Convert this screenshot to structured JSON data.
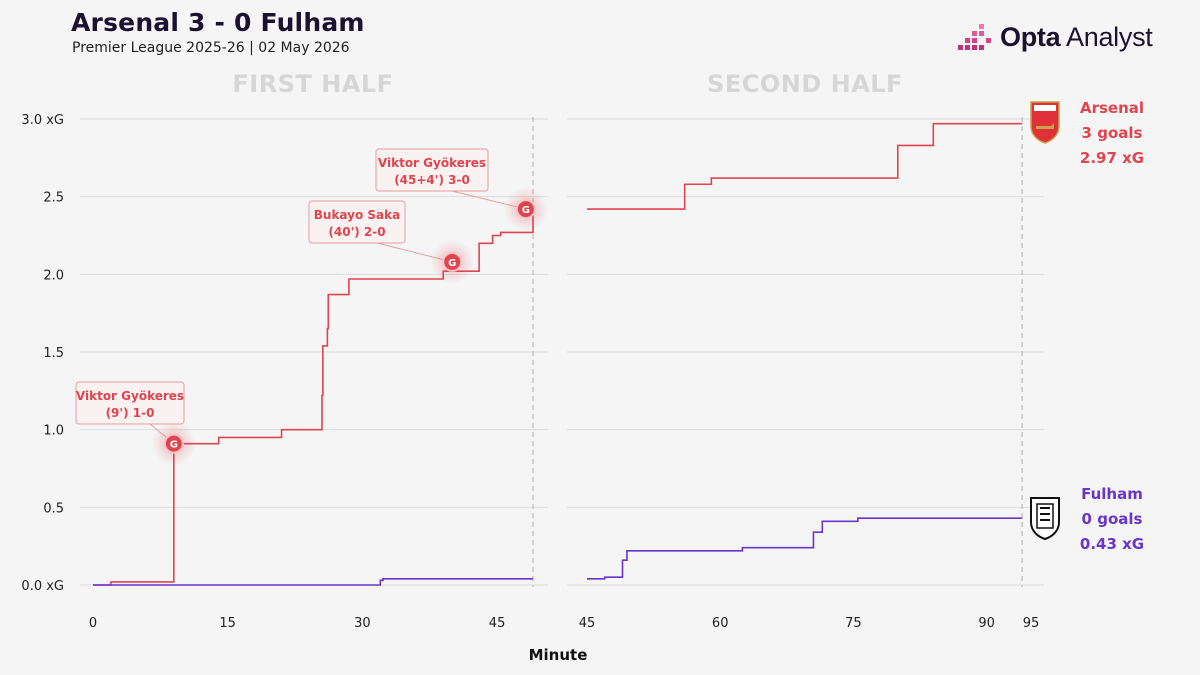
{
  "header": {
    "title": "Arsenal 3 - 0 Fulham",
    "subtitle": "Premier League 2025-26 | 02 May 2026",
    "brand_bold": "Opta",
    "brand_light": " Analyst"
  },
  "chart_data": {
    "type": "line",
    "step": true,
    "panels": [
      {
        "title": "FIRST HALF",
        "xlim": [
          0,
          49
        ],
        "xticks": [
          0,
          15,
          30,
          45
        ],
        "end_minute": 49
      },
      {
        "title": "SECOND HALF",
        "xlim": [
          45,
          95
        ],
        "xticks": [
          45,
          60,
          75,
          90,
          95
        ],
        "end_minute": 94
      }
    ],
    "xlabel": "Minute",
    "ylim": [
      0,
      3.0
    ],
    "yticks": [
      0.0,
      0.5,
      1.0,
      1.5,
      2.0,
      2.5,
      3.0
    ],
    "ytick_labels": [
      "0.0 xG",
      "0.5",
      "1.0",
      "1.5",
      "2.0",
      "2.5",
      "3.0 xG"
    ],
    "series": [
      {
        "name": "Arsenal",
        "color": "#e0454f",
        "first_half": [
          [
            0,
            0
          ],
          [
            2,
            0.02
          ],
          [
            9,
            0.91
          ],
          [
            14,
            0.95
          ],
          [
            21,
            1.0
          ],
          [
            25.5,
            1.22
          ],
          [
            25.6,
            1.54
          ],
          [
            26.1,
            1.65
          ],
          [
            26.2,
            1.87
          ],
          [
            28.5,
            1.97
          ],
          [
            39,
            2.02
          ],
          [
            43,
            2.2
          ],
          [
            44.5,
            2.25
          ],
          [
            45.4,
            2.27
          ],
          [
            49,
            2.42
          ]
        ],
        "first_half_end": 49,
        "second_half": [
          [
            45,
            2.42
          ],
          [
            56,
            2.58
          ],
          [
            59,
            2.62
          ],
          [
            80,
            2.83
          ],
          [
            84,
            2.97
          ]
        ],
        "second_half_end": 94,
        "goals": [
          {
            "minute": 9,
            "xg": 0.91,
            "label1": "Viktor Gyökeres",
            "label2": "(9') 1-0"
          },
          {
            "minute": 40,
            "xg": 2.08,
            "label1": "Bukayo Saka",
            "label2": "(40') 2-0"
          },
          {
            "minute": 48.2,
            "xg": 2.42,
            "label1": "Viktor Gyökeres",
            "label2": "(45+4') 3-0"
          }
        ],
        "summary": {
          "team": "Arsenal",
          "goals": "3 goals",
          "xg": "2.97 xG"
        }
      },
      {
        "name": "Fulham",
        "color": "#6a35c9",
        "first_half": [
          [
            0,
            0
          ],
          [
            32,
            0.03
          ],
          [
            32.3,
            0.04
          ]
        ],
        "first_half_end": 49,
        "second_half": [
          [
            45,
            0.04
          ],
          [
            47,
            0.05
          ],
          [
            49,
            0.16
          ],
          [
            49.5,
            0.22
          ],
          [
            62.5,
            0.24
          ],
          [
            70.5,
            0.34
          ],
          [
            71.5,
            0.41
          ],
          [
            75.5,
            0.43
          ]
        ],
        "second_half_end": 94,
        "goals": [],
        "summary": {
          "team": "Fulham",
          "goals": "0 goals",
          "xg": "0.43 xG"
        }
      }
    ],
    "goal_marker": "G",
    "grid": true,
    "colors": {
      "arsenal": "#e0454f",
      "fulham": "#6a35c9",
      "grid": "#dcdcdc",
      "half_title": "#d6d6d6"
    }
  }
}
